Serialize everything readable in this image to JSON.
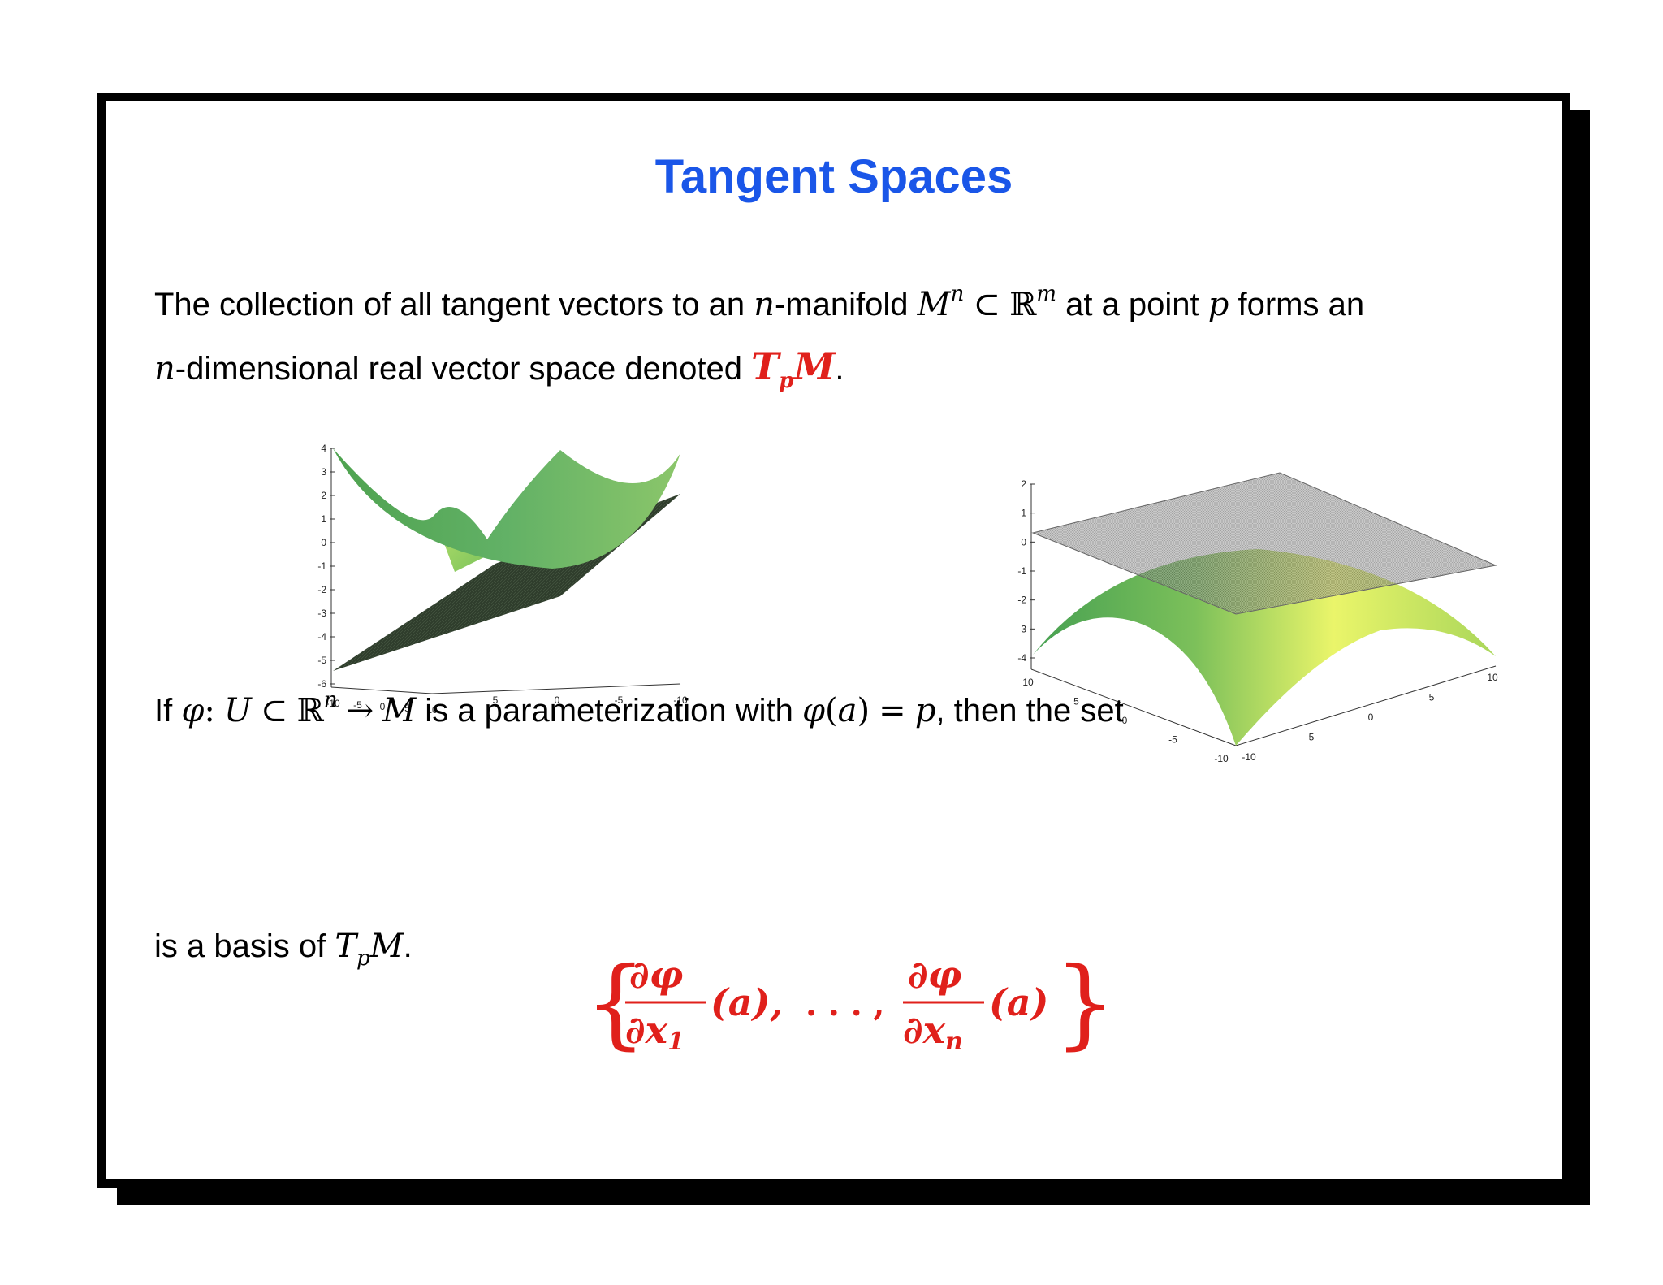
{
  "slide": {
    "title": "Tangent Spaces",
    "intro": {
      "t1": "The collection of all tangent vectors to an ",
      "n": "n",
      "t2": "-manifold ",
      "M": "M",
      "sup_n": "n",
      "subset": "⊂",
      "R": "ℝ",
      "sup_m": "m",
      "t3": " at a point ",
      "p": "p",
      "t4": " forms an",
      "n2": "n",
      "t5": "-dimensional real vector space denoted ",
      "T": "T",
      "sub_p": "p",
      "M2": "M",
      "t6": "."
    },
    "param_line": {
      "t1": "If ",
      "phi": "φ",
      "colon": ":",
      "U": "U",
      "subset": "⊂",
      "R": "ℝ",
      "sup_n": "n",
      "arrow": "→",
      "M": "M",
      "t2": " is a parameterization with ",
      "phi_a": "φ",
      "lp": "(",
      "a": "a",
      "rp": ")",
      "eq": "=",
      "p": "p",
      "t3": ", then the set"
    },
    "basis_formula": {
      "lbrace": "{",
      "rbrace": "}",
      "num": "∂φ",
      "den1_d": "∂",
      "den1_x": "x",
      "den1_sub": "1",
      "den2_d": "∂",
      "den2_x": "x",
      "den2_sub": "n",
      "arg1": "(a),",
      "dots": ". . . ,",
      "arg2": "(a)"
    },
    "conclusion": {
      "t1": "is a basis of ",
      "T": "T",
      "sub_p": "p",
      "M": "M",
      "t2": "."
    }
  },
  "plots": {
    "left": {
      "z_ticks": [
        "4",
        "3",
        "2",
        "1",
        "0",
        "-1",
        "-2",
        "-3",
        "-4",
        "-5",
        "-6"
      ],
      "x_ticks": [
        "-10",
        "-5",
        "0",
        "5",
        "10"
      ],
      "y_ticks": [
        "5",
        "0",
        "-5",
        "-10"
      ]
    },
    "right": {
      "z_ticks": [
        "2",
        "1",
        "0",
        "-1",
        "-2",
        "-3",
        "-4"
      ],
      "left_ticks": [
        "10",
        "5",
        "0",
        "-5",
        "-10"
      ],
      "right_ticks": [
        "-10",
        "-5",
        "0",
        "5",
        "10"
      ]
    }
  },
  "colors": {
    "title": "#1a56e8",
    "accent": "#e0201b",
    "surface": "#5aa65a",
    "plane": "#2e3a2b"
  }
}
